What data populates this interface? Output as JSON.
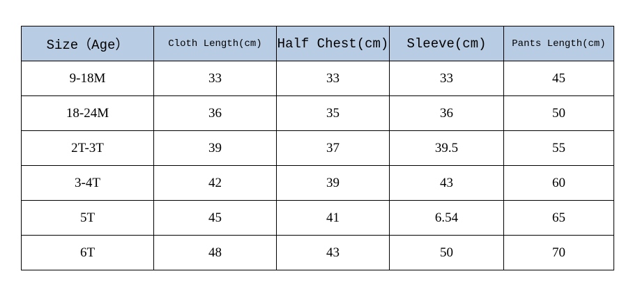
{
  "table": {
    "header": [
      "Size（Age）",
      "Cloth Length(cm)",
      "Half Chest(cm)",
      "Sleeve(cm)",
      "Pants Length(cm)"
    ],
    "rows": [
      [
        "9-18M",
        "33",
        "33",
        "33",
        "45"
      ],
      [
        "18-24M",
        "36",
        "35",
        "36",
        "50"
      ],
      [
        "2T-3T",
        "39",
        "37",
        "39.5",
        "55"
      ],
      [
        "3-4T",
        "42",
        "39",
        "43",
        "60"
      ],
      [
        "5T",
        "45",
        "41",
        "6.54",
        "65"
      ],
      [
        "6T",
        "48",
        "43",
        "50",
        "70"
      ]
    ]
  }
}
